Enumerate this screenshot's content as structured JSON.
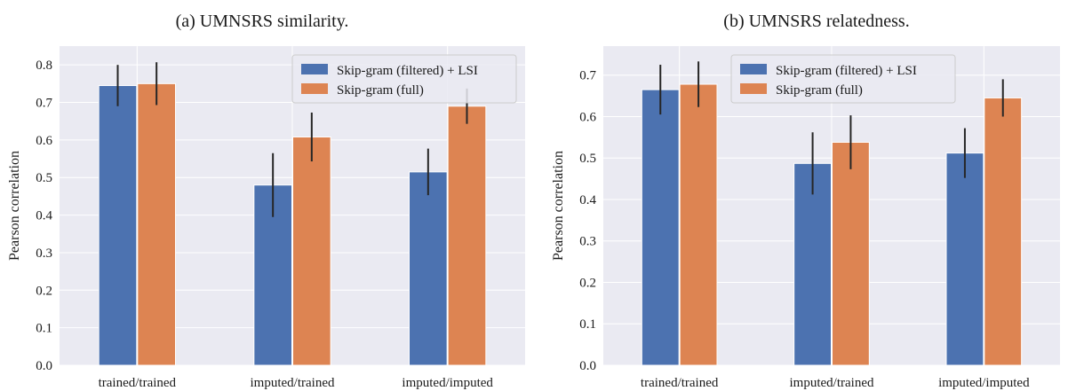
{
  "chart_data": [
    {
      "type": "bar",
      "title": "(a) UMNSRS similarity.",
      "xlabel": "",
      "ylabel": "Pearson correlation",
      "ylim": [
        0,
        0.85
      ],
      "yticks": [
        "0.0",
        "0.1",
        "0.2",
        "0.3",
        "0.4",
        "0.5",
        "0.6",
        "0.7",
        "0.8"
      ],
      "categories": [
        "trained/trained",
        "imputed/trained",
        "imputed/imputed"
      ],
      "grid": true,
      "legend_position": "top-right",
      "series": [
        {
          "name": "Skip-gram (filtered) + LSI",
          "color": "#4c72b0",
          "values": [
            0.745,
            0.48,
            0.515
          ],
          "errors": [
            0.055,
            0.085,
            0.062
          ]
        },
        {
          "name": "Skip-gram (full)",
          "color": "#dd8452",
          "values": [
            0.75,
            0.608,
            0.69
          ],
          "errors": [
            0.057,
            0.065,
            0.047
          ]
        }
      ]
    },
    {
      "type": "bar",
      "title": "(b) UMNSRS relatedness.",
      "xlabel": "",
      "ylabel": "Pearson correlation",
      "ylim": [
        0,
        0.77
      ],
      "yticks": [
        "0.0",
        "0.1",
        "0.2",
        "0.3",
        "0.4",
        "0.5",
        "0.6",
        "0.7"
      ],
      "categories": [
        "trained/trained",
        "imputed/trained",
        "imputed/imputed"
      ],
      "grid": true,
      "legend_position": "top-center",
      "series": [
        {
          "name": "Skip-gram (filtered) + LSI",
          "color": "#4c72b0",
          "values": [
            0.665,
            0.487,
            0.512
          ],
          "errors": [
            0.06,
            0.075,
            0.06
          ]
        },
        {
          "name": "Skip-gram (full)",
          "color": "#dd8452",
          "values": [
            0.678,
            0.538,
            0.645
          ],
          "errors": [
            0.055,
            0.065,
            0.045
          ]
        }
      ]
    }
  ]
}
